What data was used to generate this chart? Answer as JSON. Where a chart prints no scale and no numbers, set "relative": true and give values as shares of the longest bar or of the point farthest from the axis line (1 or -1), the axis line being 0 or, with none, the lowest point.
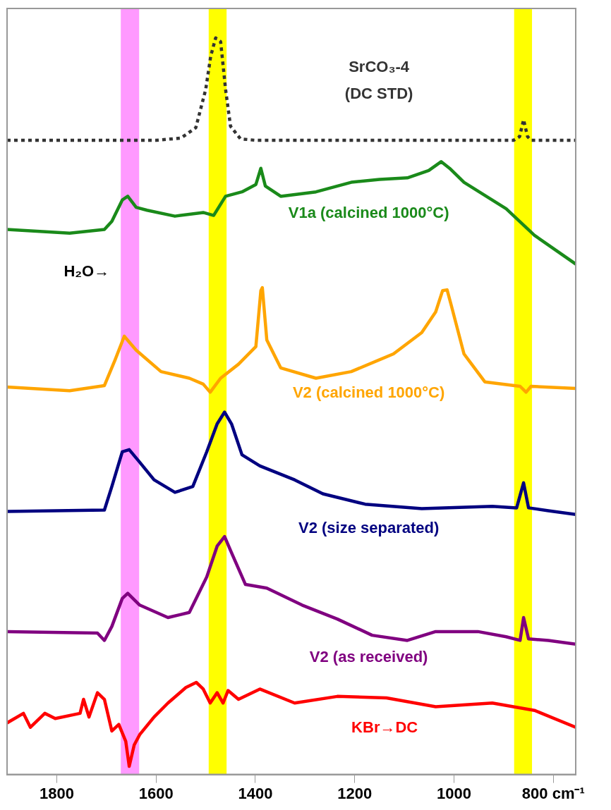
{
  "chart_data": {
    "type": "line",
    "relative": true,
    "xlim": [
      1900,
      755
    ],
    "xticks": [
      1800,
      1600,
      1400,
      1200,
      1000,
      {
        "value": 800,
        "label": "800 cm⁻¹"
      }
    ],
    "tick_labels": "x",
    "grid": false,
    "legend": false,
    "marker": "none",
    "annotations": [
      "H₂O→"
    ],
    "bands": [
      {
        "axis": "x",
        "from": 1671,
        "to": 1634,
        "color": "#ff99ff"
      },
      {
        "axis": "x",
        "from": 1494,
        "to": 1458,
        "color": "#ffff00"
      },
      {
        "axis": "x",
        "from": 879,
        "to": 843,
        "color": "#ffff00"
      }
    ],
    "series": [
      {
        "name": "SrCO₃-4 (DC STD)",
        "color": "#333333",
        "line_style": "dotted",
        "x": [
          1900,
          1700,
          1600,
          1550,
          1520,
          1500,
          1490,
          1480,
          1470,
          1460,
          1450,
          1430,
          1400,
          1000,
          880,
          868,
          860,
          852,
          845,
          755
        ],
        "values": [
          0.861,
          0.861,
          0.861,
          0.864,
          0.878,
          0.93,
          0.975,
          1.0,
          0.995,
          0.93,
          0.88,
          0.863,
          0.861,
          0.861,
          0.861,
          0.866,
          0.889,
          0.866,
          0.861,
          0.861
        ]
      },
      {
        "name": "V1a (calcined 1000°C)",
        "color": "#1a8a1a",
        "line_style": "solid",
        "x": [
          1900,
          1774,
          1704,
          1689,
          1668,
          1657,
          1640,
          1618,
          1562,
          1505,
          1484,
          1460,
          1427,
          1399,
          1389,
          1380,
          1349,
          1278,
          1207,
          1150,
          1094,
          1051,
          1026,
          1009,
          980,
          895,
          838,
          755
        ],
        "values": [
          0.74,
          0.735,
          0.74,
          0.751,
          0.78,
          0.785,
          0.77,
          0.766,
          0.758,
          0.763,
          0.759,
          0.785,
          0.791,
          0.801,
          0.823,
          0.799,
          0.785,
          0.791,
          0.804,
          0.808,
          0.81,
          0.82,
          0.832,
          0.823,
          0.804,
          0.768,
          0.732,
          0.693
        ]
      },
      {
        "name": "V2 (calcined 1000°C)",
        "color": "#ffa500",
        "line_style": "solid",
        "x": [
          1900,
          1774,
          1704,
          1683,
          1664,
          1640,
          1590,
          1533,
          1505,
          1491,
          1470,
          1434,
          1399,
          1389,
          1386,
          1377,
          1349,
          1278,
          1207,
          1122,
          1065,
          1037,
          1023,
          1014,
          1006,
          980,
          938,
          867,
          855,
          845,
          755
        ],
        "values": [
          0.526,
          0.521,
          0.528,
          0.562,
          0.595,
          0.576,
          0.547,
          0.538,
          0.53,
          0.519,
          0.538,
          0.557,
          0.581,
          0.657,
          0.661,
          0.59,
          0.552,
          0.538,
          0.547,
          0.571,
          0.6,
          0.628,
          0.657,
          0.658,
          0.638,
          0.571,
          0.533,
          0.527,
          0.519,
          0.527,
          0.524
        ]
      },
      {
        "name": "V2 (size separated)",
        "color": "#000080",
        "line_style": "solid",
        "x": [
          1900,
          1704,
          1689,
          1668,
          1654,
          1633,
          1604,
          1562,
          1526,
          1498,
          1477,
          1462,
          1448,
          1427,
          1391,
          1321,
          1264,
          1179,
          1065,
          923,
          874,
          860,
          850,
          810,
          755
        ],
        "values": [
          0.357,
          0.359,
          0.391,
          0.438,
          0.441,
          0.424,
          0.4,
          0.383,
          0.391,
          0.438,
          0.476,
          0.492,
          0.476,
          0.434,
          0.419,
          0.4,
          0.381,
          0.367,
          0.361,
          0.364,
          0.362,
          0.396,
          0.362,
          0.358,
          0.353
        ]
      },
      {
        "name": "V2 (as received)",
        "color": "#800080",
        "line_style": "solid",
        "x": [
          1900,
          1718,
          1704,
          1689,
          1668,
          1657,
          1633,
          1576,
          1533,
          1498,
          1477,
          1462,
          1448,
          1420,
          1377,
          1306,
          1235,
          1165,
          1094,
          1037,
          952,
          895,
          867,
          860,
          850,
          810,
          755
        ],
        "values": [
          0.194,
          0.192,
          0.182,
          0.201,
          0.239,
          0.246,
          0.23,
          0.213,
          0.22,
          0.268,
          0.31,
          0.323,
          0.301,
          0.258,
          0.253,
          0.23,
          0.211,
          0.189,
          0.182,
          0.194,
          0.194,
          0.187,
          0.182,
          0.213,
          0.184,
          0.182,
          0.177
        ]
      },
      {
        "name": "KBr→DC",
        "color": "#ff0000",
        "line_style": "solid",
        "x": [
          1900,
          1867,
          1853,
          1824,
          1803,
          1753,
          1746,
          1735,
          1718,
          1704,
          1689,
          1675,
          1661,
          1654,
          1644,
          1633,
          1604,
          1576,
          1540,
          1519,
          1505,
          1491,
          1477,
          1465,
          1455,
          1434,
          1391,
          1321,
          1235,
          1136,
          1037,
          923,
          838,
          755
        ],
        "values": [
          0.07,
          0.083,
          0.064,
          0.083,
          0.076,
          0.083,
          0.102,
          0.078,
          0.111,
          0.102,
          0.059,
          0.068,
          0.045,
          0.011,
          0.04,
          0.054,
          0.078,
          0.097,
          0.118,
          0.125,
          0.116,
          0.097,
          0.111,
          0.097,
          0.114,
          0.102,
          0.116,
          0.097,
          0.106,
          0.104,
          0.092,
          0.097,
          0.087,
          0.064
        ]
      }
    ]
  }
}
